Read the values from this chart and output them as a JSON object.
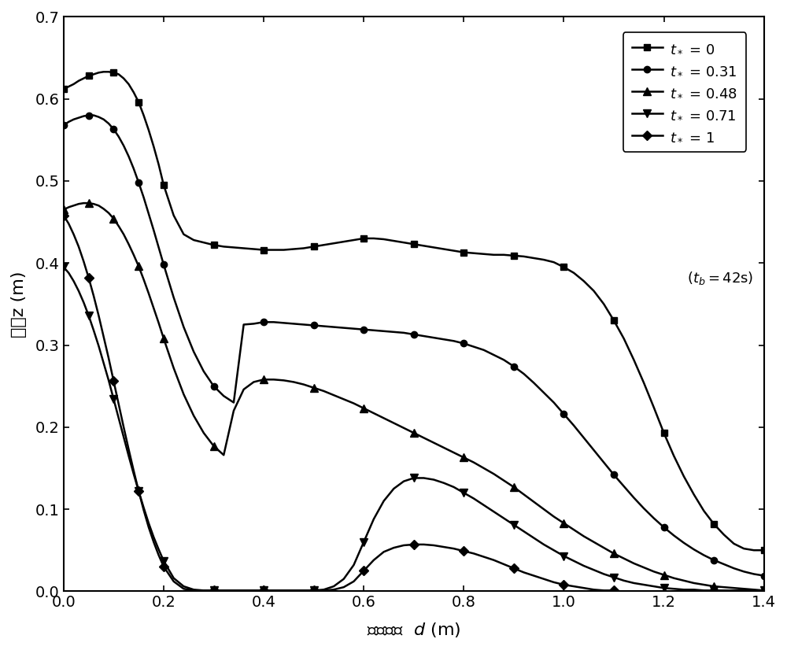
{
  "xlim": [
    0.0,
    1.4
  ],
  "ylim": [
    0.0,
    0.7
  ],
  "xticks": [
    0.0,
    0.2,
    0.4,
    0.6,
    0.8,
    1.0,
    1.2,
    1.4
  ],
  "yticks": [
    0.0,
    0.1,
    0.2,
    0.3,
    0.4,
    0.5,
    0.6,
    0.7
  ],
  "series": [
    {
      "label": "$t_*$ = 0",
      "marker": "s",
      "x": [
        0.0,
        0.01,
        0.02,
        0.03,
        0.04,
        0.05,
        0.06,
        0.07,
        0.08,
        0.09,
        0.1,
        0.11,
        0.12,
        0.13,
        0.14,
        0.15,
        0.16,
        0.17,
        0.18,
        0.19,
        0.2,
        0.22,
        0.24,
        0.26,
        0.28,
        0.3,
        0.32,
        0.34,
        0.36,
        0.38,
        0.4,
        0.42,
        0.44,
        0.46,
        0.48,
        0.5,
        0.52,
        0.54,
        0.56,
        0.58,
        0.6,
        0.62,
        0.64,
        0.66,
        0.68,
        0.7,
        0.72,
        0.74,
        0.76,
        0.78,
        0.8,
        0.82,
        0.84,
        0.86,
        0.88,
        0.9,
        0.92,
        0.94,
        0.96,
        0.98,
        1.0,
        1.02,
        1.04,
        1.06,
        1.08,
        1.1,
        1.12,
        1.14,
        1.16,
        1.18,
        1.2,
        1.22,
        1.24,
        1.26,
        1.28,
        1.3,
        1.32,
        1.34,
        1.36,
        1.38,
        1.4
      ],
      "y": [
        0.612,
        0.615,
        0.618,
        0.622,
        0.625,
        0.628,
        0.63,
        0.632,
        0.633,
        0.633,
        0.632,
        0.63,
        0.625,
        0.618,
        0.608,
        0.596,
        0.58,
        0.562,
        0.542,
        0.52,
        0.495,
        0.458,
        0.435,
        0.428,
        0.425,
        0.422,
        0.42,
        0.419,
        0.418,
        0.417,
        0.416,
        0.416,
        0.416,
        0.417,
        0.418,
        0.42,
        0.422,
        0.424,
        0.426,
        0.428,
        0.43,
        0.43,
        0.429,
        0.427,
        0.425,
        0.423,
        0.421,
        0.419,
        0.417,
        0.415,
        0.413,
        0.412,
        0.411,
        0.41,
        0.41,
        0.409,
        0.408,
        0.406,
        0.404,
        0.401,
        0.395,
        0.388,
        0.378,
        0.366,
        0.35,
        0.33,
        0.308,
        0.282,
        0.254,
        0.224,
        0.193,
        0.165,
        0.14,
        0.118,
        0.098,
        0.082,
        0.069,
        0.058,
        0.052,
        0.05,
        0.05
      ]
    },
    {
      "label": "$t_*$ = 0.31",
      "marker": "o",
      "x": [
        0.0,
        0.01,
        0.02,
        0.03,
        0.04,
        0.05,
        0.06,
        0.07,
        0.08,
        0.09,
        0.1,
        0.11,
        0.12,
        0.13,
        0.14,
        0.15,
        0.16,
        0.17,
        0.18,
        0.19,
        0.2,
        0.22,
        0.24,
        0.26,
        0.28,
        0.3,
        0.32,
        0.34,
        0.36,
        0.38,
        0.4,
        0.42,
        0.44,
        0.46,
        0.48,
        0.5,
        0.52,
        0.54,
        0.56,
        0.58,
        0.6,
        0.62,
        0.64,
        0.66,
        0.68,
        0.7,
        0.72,
        0.74,
        0.76,
        0.78,
        0.8,
        0.82,
        0.84,
        0.86,
        0.88,
        0.9,
        0.92,
        0.94,
        0.96,
        0.98,
        1.0,
        1.02,
        1.04,
        1.06,
        1.08,
        1.1,
        1.12,
        1.14,
        1.16,
        1.18,
        1.2,
        1.22,
        1.24,
        1.26,
        1.28,
        1.3,
        1.32,
        1.34,
        1.36,
        1.38,
        1.4
      ],
      "y": [
        0.568,
        0.572,
        0.575,
        0.577,
        0.579,
        0.58,
        0.58,
        0.578,
        0.575,
        0.57,
        0.563,
        0.554,
        0.543,
        0.53,
        0.515,
        0.498,
        0.48,
        0.46,
        0.44,
        0.419,
        0.398,
        0.358,
        0.322,
        0.292,
        0.268,
        0.25,
        0.238,
        0.23,
        0.325,
        0.326,
        0.328,
        0.328,
        0.327,
        0.326,
        0.325,
        0.324,
        0.323,
        0.322,
        0.321,
        0.32,
        0.319,
        0.318,
        0.317,
        0.316,
        0.315,
        0.313,
        0.311,
        0.309,
        0.307,
        0.305,
        0.302,
        0.298,
        0.294,
        0.288,
        0.282,
        0.274,
        0.265,
        0.254,
        0.242,
        0.23,
        0.216,
        0.202,
        0.187,
        0.172,
        0.157,
        0.142,
        0.128,
        0.114,
        0.101,
        0.089,
        0.078,
        0.068,
        0.059,
        0.051,
        0.044,
        0.038,
        0.033,
        0.028,
        0.024,
        0.021,
        0.019
      ]
    },
    {
      "label": "$t_*$ = 0.48",
      "marker": "^",
      "x": [
        0.0,
        0.01,
        0.02,
        0.03,
        0.04,
        0.05,
        0.06,
        0.07,
        0.08,
        0.09,
        0.1,
        0.11,
        0.12,
        0.13,
        0.14,
        0.15,
        0.16,
        0.17,
        0.18,
        0.19,
        0.2,
        0.22,
        0.24,
        0.26,
        0.28,
        0.3,
        0.32,
        0.34,
        0.36,
        0.38,
        0.4,
        0.42,
        0.44,
        0.46,
        0.48,
        0.5,
        0.52,
        0.54,
        0.56,
        0.58,
        0.6,
        0.62,
        0.64,
        0.66,
        0.68,
        0.7,
        0.72,
        0.74,
        0.76,
        0.78,
        0.8,
        0.82,
        0.84,
        0.86,
        0.88,
        0.9,
        0.92,
        0.94,
        0.96,
        0.98,
        1.0,
        1.02,
        1.04,
        1.06,
        1.08,
        1.1,
        1.12,
        1.14,
        1.16,
        1.18,
        1.2,
        1.22,
        1.24,
        1.26,
        1.28,
        1.3,
        1.32,
        1.34,
        1.36,
        1.38,
        1.4
      ],
      "y": [
        0.465,
        0.468,
        0.47,
        0.472,
        0.473,
        0.473,
        0.472,
        0.47,
        0.466,
        0.461,
        0.454,
        0.445,
        0.435,
        0.423,
        0.41,
        0.396,
        0.38,
        0.363,
        0.345,
        0.327,
        0.308,
        0.272,
        0.24,
        0.214,
        0.193,
        0.177,
        0.166,
        0.22,
        0.246,
        0.255,
        0.258,
        0.258,
        0.257,
        0.255,
        0.252,
        0.248,
        0.244,
        0.239,
        0.234,
        0.229,
        0.223,
        0.217,
        0.211,
        0.205,
        0.199,
        0.193,
        0.187,
        0.181,
        0.175,
        0.169,
        0.163,
        0.157,
        0.15,
        0.143,
        0.135,
        0.127,
        0.118,
        0.109,
        0.1,
        0.091,
        0.083,
        0.075,
        0.067,
        0.06,
        0.053,
        0.046,
        0.04,
        0.034,
        0.029,
        0.024,
        0.02,
        0.016,
        0.013,
        0.01,
        0.008,
        0.006,
        0.005,
        0.004,
        0.003,
        0.002,
        0.001
      ]
    },
    {
      "label": "$t_*$ = 0.71",
      "marker": "v",
      "x": [
        0.0,
        0.01,
        0.02,
        0.03,
        0.04,
        0.05,
        0.06,
        0.07,
        0.08,
        0.09,
        0.1,
        0.11,
        0.12,
        0.13,
        0.14,
        0.15,
        0.16,
        0.17,
        0.18,
        0.19,
        0.2,
        0.22,
        0.24,
        0.26,
        0.28,
        0.3,
        0.32,
        0.34,
        0.36,
        0.38,
        0.4,
        0.42,
        0.44,
        0.46,
        0.48,
        0.5,
        0.52,
        0.54,
        0.56,
        0.58,
        0.6,
        0.62,
        0.64,
        0.66,
        0.68,
        0.7,
        0.72,
        0.74,
        0.76,
        0.78,
        0.8,
        0.82,
        0.84,
        0.86,
        0.88,
        0.9,
        0.92,
        0.94,
        0.96,
        0.98,
        1.0,
        1.02,
        1.04,
        1.06,
        1.08,
        1.1,
        1.12,
        1.14,
        1.16,
        1.18,
        1.2,
        1.22,
        1.24,
        1.26,
        1.28,
        1.3,
        1.32,
        1.34,
        1.36,
        1.38,
        1.4
      ],
      "y": [
        0.395,
        0.388,
        0.378,
        0.366,
        0.352,
        0.336,
        0.318,
        0.299,
        0.278,
        0.257,
        0.234,
        0.211,
        0.188,
        0.165,
        0.143,
        0.122,
        0.102,
        0.083,
        0.066,
        0.051,
        0.037,
        0.016,
        0.006,
        0.002,
        0.001,
        0.001,
        0.001,
        0.001,
        0.001,
        0.001,
        0.001,
        0.001,
        0.001,
        0.001,
        0.001,
        0.001,
        0.002,
        0.006,
        0.015,
        0.032,
        0.06,
        0.088,
        0.11,
        0.125,
        0.134,
        0.138,
        0.138,
        0.136,
        0.132,
        0.127,
        0.12,
        0.113,
        0.105,
        0.097,
        0.089,
        0.081,
        0.073,
        0.065,
        0.057,
        0.05,
        0.043,
        0.037,
        0.031,
        0.026,
        0.021,
        0.017,
        0.013,
        0.01,
        0.008,
        0.006,
        0.004,
        0.003,
        0.002,
        0.002,
        0.001,
        0.001,
        0.001,
        0.001,
        0.001,
        0.001,
        0.001
      ]
    },
    {
      "label": "$t_*$ = 1",
      "marker": "D",
      "x": [
        0.0,
        0.01,
        0.02,
        0.03,
        0.04,
        0.05,
        0.06,
        0.07,
        0.08,
        0.09,
        0.1,
        0.11,
        0.12,
        0.13,
        0.14,
        0.15,
        0.16,
        0.17,
        0.18,
        0.19,
        0.2,
        0.22,
        0.24,
        0.26,
        0.28,
        0.3,
        0.32,
        0.34,
        0.36,
        0.38,
        0.4,
        0.42,
        0.44,
        0.46,
        0.48,
        0.5,
        0.52,
        0.54,
        0.56,
        0.58,
        0.6,
        0.62,
        0.64,
        0.66,
        0.68,
        0.7,
        0.72,
        0.74,
        0.76,
        0.78,
        0.8,
        0.82,
        0.84,
        0.86,
        0.88,
        0.9,
        0.92,
        0.94,
        0.96,
        0.98,
        1.0,
        1.02,
        1.04,
        1.06,
        1.08,
        1.1
      ],
      "y": [
        0.458,
        0.448,
        0.435,
        0.42,
        0.402,
        0.382,
        0.36,
        0.336,
        0.31,
        0.284,
        0.256,
        0.228,
        0.2,
        0.173,
        0.147,
        0.122,
        0.099,
        0.078,
        0.06,
        0.044,
        0.03,
        0.012,
        0.003,
        0.001,
        0.001,
        0.001,
        0.001,
        0.001,
        0.001,
        0.001,
        0.001,
        0.001,
        0.001,
        0.001,
        0.001,
        0.001,
        0.001,
        0.002,
        0.005,
        0.012,
        0.025,
        0.038,
        0.048,
        0.053,
        0.056,
        0.057,
        0.057,
        0.056,
        0.054,
        0.052,
        0.049,
        0.046,
        0.042,
        0.038,
        0.033,
        0.028,
        0.023,
        0.019,
        0.015,
        0.011,
        0.008,
        0.006,
        0.004,
        0.002,
        0.001,
        0.001
      ]
    }
  ],
  "markersize": [
    6,
    6,
    7,
    7,
    6
  ],
  "markevery": [
    5,
    5,
    5,
    5,
    5
  ],
  "linewidth": 1.8,
  "tick_labelsize": 14,
  "legend_fontsize": 13,
  "annotation_fontsize": 13,
  "ylabel_fontsize": 16,
  "xlabel_fontsize": 16
}
